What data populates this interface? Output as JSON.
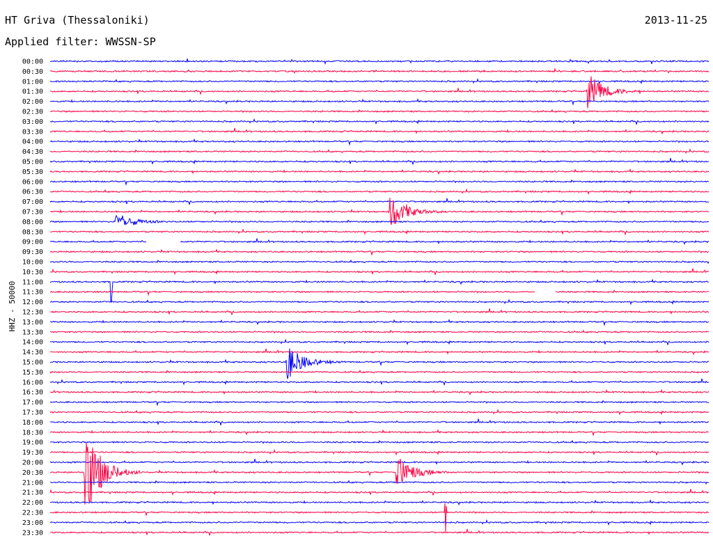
{
  "header": {
    "station": "HT Griva (Thessaloniki)",
    "date": "2013-11-25",
    "filter": "Applied filter: WWSSN-SP"
  },
  "chart_data": {
    "type": "line",
    "title": "HT Griva (Thessaloniki)",
    "subtitle": "Applied filter: WWSSN-SP",
    "ylabel": "HHZ - 50000",
    "xlabel": "",
    "colors": [
      "#0000ff",
      "#ff0044"
    ],
    "tick_labels": [
      "00:00",
      "00:30",
      "01:00",
      "01:30",
      "02:00",
      "02:30",
      "03:00",
      "03:30",
      "04:00",
      "04:30",
      "05:00",
      "05:30",
      "06:00",
      "06:30",
      "07:00",
      "07:30",
      "08:00",
      "08:30",
      "09:00",
      "09:30",
      "10:00",
      "10:30",
      "11:00",
      "11:30",
      "12:00",
      "12:30",
      "13:00",
      "13:30",
      "14:00",
      "14:30",
      "15:00",
      "15:30",
      "16:00",
      "16:30",
      "17:00",
      "17:30",
      "18:00",
      "18:30",
      "19:00",
      "19:30",
      "20:00",
      "20:30",
      "21:00",
      "21:30",
      "22:00",
      "22:30",
      "23:00",
      "23:30"
    ],
    "trace_length_minutes": 30,
    "events": [
      {
        "trace": "01:30",
        "minute": 24.5,
        "amplitude": "large"
      },
      {
        "trace": "07:30",
        "minute": 15.5,
        "amplitude": "large"
      },
      {
        "trace": "15:00",
        "minute": 10.8,
        "amplitude": "large"
      },
      {
        "trace": "20:30",
        "minute": 1.6,
        "amplitude": "very large"
      },
      {
        "trace": "20:30",
        "minute": 15.8,
        "amplitude": "large"
      },
      {
        "trace": "22:30",
        "minute": 18.0,
        "amplitude": "spike"
      },
      {
        "trace": "11:00",
        "minute": 2.8,
        "amplitude": "spike"
      },
      {
        "trace": "08:00",
        "minute": 3.0,
        "amplitude": "medium"
      }
    ],
    "gaps": [
      {
        "trace": "09:00",
        "minute_start": 4.4,
        "minute_end": 5.9
      },
      {
        "trace": "11:30",
        "minute_start": 22.1,
        "minute_end": 23.0
      }
    ]
  }
}
